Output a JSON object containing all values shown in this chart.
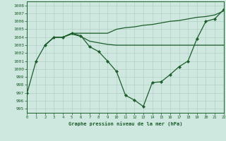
{
  "title": "Graphe pression niveau de la mer (hPa)",
  "background_color": "#cfe8df",
  "grid_color": "#b0d0c4",
  "line_color": "#1a5c2a",
  "xlim": [
    0,
    22
  ],
  "ylim": [
    994.5,
    1008.5
  ],
  "ytick_values": [
    995,
    996,
    997,
    998,
    999,
    1000,
    1001,
    1002,
    1003,
    1004,
    1005,
    1006,
    1007,
    1008
  ],
  "xtick_values": [
    0,
    1,
    2,
    3,
    4,
    5,
    6,
    7,
    8,
    9,
    10,
    11,
    12,
    13,
    14,
    15,
    16,
    17,
    18,
    19,
    20,
    21,
    22
  ],
  "series": [
    {
      "x": [
        0,
        1,
        2,
        3,
        4,
        5,
        6,
        7,
        8,
        9,
        10,
        11,
        12,
        13,
        14,
        15,
        16,
        17,
        18,
        19,
        20,
        21,
        22
      ],
      "y": [
        997.0,
        1001.0,
        1003.0,
        1004.0,
        1004.0,
        1004.5,
        1004.2,
        1002.8,
        1002.2,
        1001.0,
        999.7,
        996.7,
        996.1,
        995.3,
        998.3,
        998.4,
        999.3,
        1000.3,
        1001.0,
        1003.8,
        1006.0,
        1006.3,
        1007.5
      ],
      "linestyle": "-",
      "linewidth": 0.9,
      "marker": "D",
      "markersize": 2.2
    },
    {
      "x": [
        2,
        3,
        4,
        5,
        6,
        7,
        8,
        9,
        10,
        11,
        12,
        13,
        14,
        15,
        16,
        17,
        18,
        19,
        20,
        21,
        22
      ],
      "y": [
        1003.0,
        1004.0,
        1004.0,
        1004.5,
        1004.5,
        1004.5,
        1004.5,
        1004.5,
        1005.0,
        1005.2,
        1005.3,
        1005.5,
        1005.6,
        1005.8,
        1006.0,
        1006.1,
        1006.3,
        1006.5,
        1006.6,
        1006.8,
        1007.3
      ],
      "linestyle": "-",
      "linewidth": 0.9,
      "marker": null,
      "markersize": 0
    },
    {
      "x": [
        2,
        3,
        4,
        5,
        6,
        7,
        8,
        9,
        10,
        11,
        12,
        13,
        14,
        15,
        16,
        17,
        18,
        19,
        20,
        21,
        22
      ],
      "y": [
        1003.0,
        1004.0,
        1004.0,
        1004.4,
        1004.1,
        1003.5,
        1003.3,
        1003.1,
        1003.0,
        1003.0,
        1003.0,
        1003.0,
        1003.0,
        1003.0,
        1003.0,
        1003.0,
        1003.0,
        1003.0,
        1003.0,
        1003.0,
        1003.0
      ],
      "linestyle": "-",
      "linewidth": 0.9,
      "marker": null,
      "markersize": 0
    }
  ]
}
